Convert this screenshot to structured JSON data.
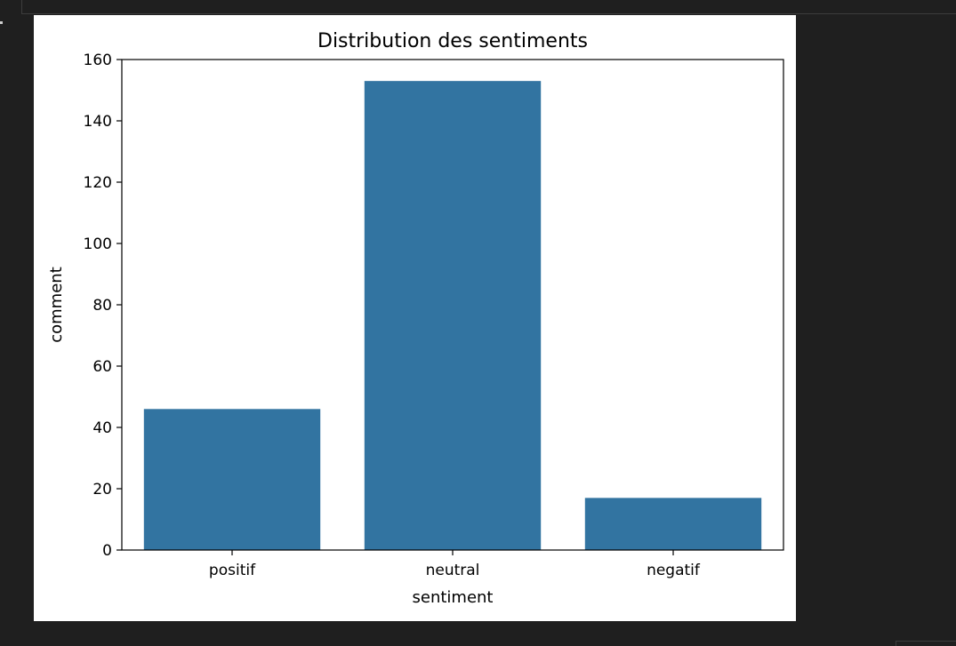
{
  "chart_data": {
    "type": "bar",
    "title": "Distribution des sentiments",
    "xlabel": "sentiment",
    "ylabel": "comment",
    "categories": [
      "positif",
      "neutral",
      "negatif"
    ],
    "values": [
      46,
      153,
      17
    ],
    "ylim": [
      0,
      160
    ],
    "yticks": [
      0,
      20,
      40,
      60,
      80,
      100,
      120,
      140,
      160
    ],
    "bar_color": "#3274a1",
    "grid": false,
    "legend": "none"
  }
}
